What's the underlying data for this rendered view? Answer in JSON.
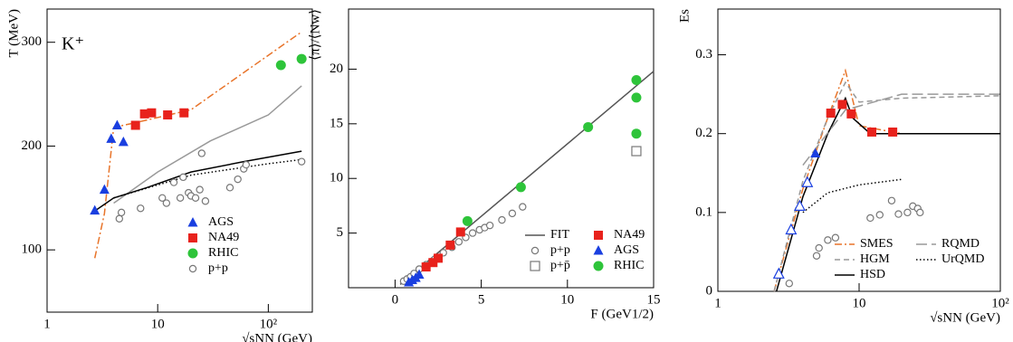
{
  "chart_data": [
    {
      "type": "scatter",
      "log_x": true,
      "annotation": "K⁺",
      "x_label": "√sNN (GeV)",
      "y_label": "T (MeV)",
      "xlim": [
        1,
        250
      ],
      "xticks": [
        1,
        10,
        {
          "value": 100,
          "label": "10²"
        }
      ],
      "ylim": [
        40,
        332
      ],
      "yticks": [
        100,
        200,
        300
      ],
      "legend": "lower right",
      "series": [
        {
          "color": "#e8742a",
          "style": "dashdot",
          "x": [
            2.7,
            3.3,
            4,
            6,
            20,
            200
          ],
          "values": [
            92,
            135,
            218,
            222,
            235,
            310
          ]
        },
        {
          "color": "#999999",
          "style": "solid",
          "x": [
            4,
            10,
            30,
            100,
            200
          ],
          "values": [
            145,
            175,
            205,
            230,
            258
          ]
        },
        {
          "color": "#000000",
          "style": "solid",
          "x": [
            2.5,
            4,
            8,
            20,
            60,
            200
          ],
          "values": [
            135,
            150,
            160,
            175,
            185,
            195
          ]
        },
        {
          "color": "#000000",
          "style": "dotted",
          "x": [
            4,
            20,
            100,
            200
          ],
          "values": [
            150,
            172,
            183,
            187
          ]
        },
        {
          "name": "AGS",
          "color": "#1a3fe0",
          "marker": "triangle",
          "x": [
            2.7,
            3.3,
            3.8,
            4.3,
            4.9
          ],
          "values": [
            138,
            158,
            207,
            220,
            204
          ]
        },
        {
          "name": "NA49",
          "color": "#e8221c",
          "marker": "square",
          "x": [
            6.3,
            7.6,
            8.8,
            12.3,
            17.3
          ],
          "values": [
            220,
            231,
            232,
            230,
            232
          ]
        },
        {
          "name": "RHIC",
          "color": "#2ec43a",
          "marker": "circle",
          "x": [
            130,
            200
          ],
          "values": [
            278,
            284
          ]
        },
        {
          "name": "p+p",
          "color": "#777777",
          "marker": "open-circle",
          "x": [
            4.5,
            4.7,
            7,
            11,
            12,
            14,
            16,
            17,
            19,
            20,
            22,
            24,
            25,
            27,
            45,
            53,
            60,
            63,
            200
          ],
          "values": [
            130,
            136,
            140,
            150,
            145,
            165,
            150,
            170,
            155,
            152,
            150,
            158,
            193,
            147,
            160,
            168,
            178,
            182,
            185
          ]
        }
      ]
    },
    {
      "type": "scatter",
      "x_label": "F (GeV1/2)",
      "y_label": "⟨π⟩/⟨Nw⟩",
      "xlim": [
        -2.7,
        15
      ],
      "xticks": [
        0,
        5,
        10,
        15
      ],
      "ylim": [
        0,
        25.5
      ],
      "yticks": [
        5,
        10,
        15,
        20
      ],
      "legend": "lower right",
      "series": [
        {
          "name": "FIT",
          "color": "#555555",
          "style": "solid",
          "x": [
            0.3,
            15
          ],
          "values": [
            0.3,
            19.8
          ]
        },
        {
          "name": "p+p",
          "color": "#777777",
          "marker": "open-circle",
          "x": [
            0.5,
            0.7,
            0.9,
            1.1,
            1.4,
            1.8,
            2.3,
            2.8,
            3.3,
            3.7,
            4.1,
            4.5,
            4.9,
            5.2,
            5.5,
            6.2,
            6.8,
            7.4
          ],
          "values": [
            0.6,
            0.8,
            1.0,
            1.3,
            1.7,
            2.1,
            2.6,
            3.2,
            3.7,
            4.2,
            4.6,
            5.0,
            5.3,
            5.5,
            5.7,
            6.2,
            6.8,
            7.4
          ]
        },
        {
          "name": "p+p̄",
          "color": "#777777",
          "marker": "open-square",
          "x": [
            14
          ],
          "values": [
            12.5
          ]
        },
        {
          "name": "NA49",
          "color": "#e8221c",
          "marker": "square",
          "x": [
            1.8,
            2.2,
            2.5,
            3.2,
            3.8
          ],
          "values": [
            1.9,
            2.3,
            2.7,
            3.9,
            5.1
          ]
        },
        {
          "name": "AGS",
          "color": "#1a3fe0",
          "marker": "triangle",
          "x": [
            0.8,
            1.0,
            1.2,
            1.4
          ],
          "values": [
            0.5,
            0.7,
            0.9,
            1.2
          ]
        },
        {
          "name": "RHIC",
          "color": "#2ec43a",
          "marker": "circle",
          "x": [
            4.2,
            7.3,
            11.2,
            14,
            14,
            14
          ],
          "values": [
            6.1,
            9.2,
            14.7,
            19,
            17.4,
            14.1
          ]
        }
      ]
    },
    {
      "type": "scatter",
      "log_x": true,
      "x_label": "√sNN (GeV)",
      "y_label": "Es",
      "xlim": [
        1,
        100
      ],
      "xticks": [
        1,
        10,
        {
          "value": 100,
          "label": "10²"
        }
      ],
      "ylim": [
        0,
        0.358
      ],
      "yticks": [
        0,
        0.1,
        0.2,
        0.3
      ],
      "legend": "lower right",
      "series": [
        {
          "name": "SMES",
          "color": "#e8742a",
          "style": "dashdot",
          "x": [
            2.5,
            4,
            6,
            8,
            10,
            20,
            100
          ],
          "values": [
            0,
            0.13,
            0.22,
            0.28,
            0.21,
            0.2,
            0.2
          ]
        },
        {
          "name": "HGM",
          "color": "#999999",
          "style": "dashed",
          "x": [
            2.5,
            4,
            6,
            8,
            10,
            20,
            100
          ],
          "values": [
            0,
            0.14,
            0.22,
            0.265,
            0.24,
            0.245,
            0.248
          ]
        },
        {
          "name": "HSD",
          "color": "#000000",
          "style": "solid",
          "x": [
            2.6,
            4,
            6,
            8,
            9,
            12,
            100
          ],
          "values": [
            0,
            0.12,
            0.2,
            0.245,
            0.22,
            0.2,
            0.2
          ]
        },
        {
          "name": "RQMD",
          "color": "#999999",
          "style": "longdash",
          "x": [
            4,
            8,
            20,
            100
          ],
          "values": [
            0.16,
            0.23,
            0.25,
            0.25
          ]
        },
        {
          "name": "UrQMD",
          "color": "#000000",
          "style": "dotted",
          "x": [
            4,
            6,
            10,
            20
          ],
          "values": [
            0.1,
            0.125,
            0.135,
            0.142
          ]
        },
        {
          "color": "#1a3fe0",
          "marker": "open-triangle",
          "x": [
            2.7,
            3.3,
            3.8,
            4.3
          ],
          "values": [
            0.022,
            0.078,
            0.108,
            0.138
          ]
        },
        {
          "color": "#1a3fe0",
          "marker": "triangle",
          "x": [
            4.9
          ],
          "values": [
            0.175
          ]
        },
        {
          "color": "#e8221c",
          "marker": "square",
          "x": [
            6.3,
            7.6,
            8.8,
            12.3,
            17.3
          ],
          "values": [
            0.226,
            0.237,
            0.225,
            0.202,
            0.202
          ]
        },
        {
          "color": "#777777",
          "marker": "open-circle",
          "x": [
            3.2,
            5,
            5.2,
            6,
            6.8,
            12,
            14,
            17,
            19,
            22,
            24,
            26,
            27
          ],
          "values": [
            0.01,
            0.045,
            0.055,
            0.065,
            0.068,
            0.093,
            0.097,
            0.115,
            0.098,
            0.1,
            0.108,
            0.105,
            0.1
          ]
        }
      ]
    }
  ]
}
